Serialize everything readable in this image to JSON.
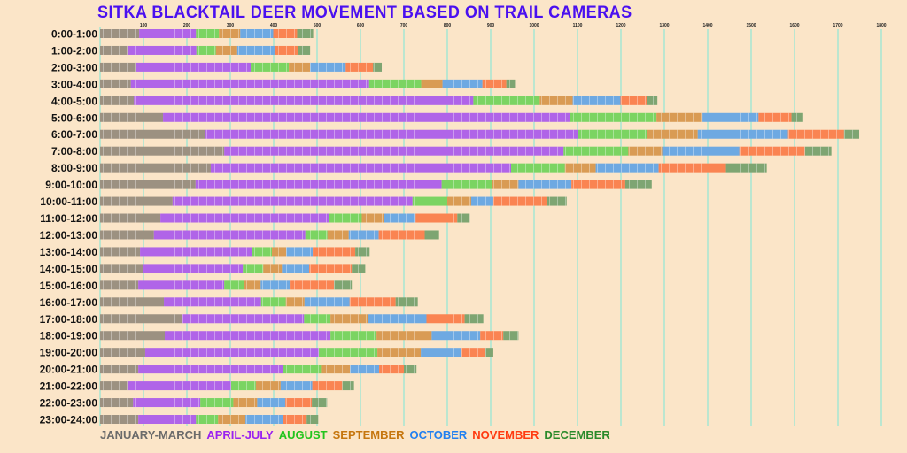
{
  "chart_data": {
    "type": "bar",
    "orientation": "horizontal",
    "stacked": true,
    "title": "SITKA BLACKTAIL DEER MOVEMENT BASED ON TRAIL CAMERAS",
    "xlim": [
      0,
      1800
    ],
    "xticks": [
      100,
      200,
      300,
      400,
      500,
      600,
      700,
      800,
      900,
      1000,
      1100,
      1200,
      1300,
      1400,
      1500,
      1600,
      1700,
      1800
    ],
    "grid": true,
    "legend_position": "bottom-left",
    "categories": [
      "0:00-1:00",
      "1:00-2:00",
      "2:00-3:00",
      "3:00-4:00",
      "4:00-5:00",
      "5:00-6:00",
      "6:00-7:00",
      "7:00-8:00",
      "8:00-9:00",
      "9:00-10:00",
      "10:00-11:00",
      "11:00-12:00",
      "12:00-13:00",
      "13:00-14:00",
      "14:00-15:00",
      "15:00-16:00",
      "16:00-17:00",
      "17:00-18:00",
      "18:00-19:00",
      "19:00-20:00",
      "20:00-21:00",
      "21:00-22:00",
      "22:00-23:00",
      "23:00-24:00"
    ],
    "series": [
      {
        "name": "JANUARY-MARCH",
        "color": "#9c9181",
        "legend_color": "#6b6b6b",
        "values": [
          90,
          63,
          82,
          71,
          78,
          145,
          243,
          286,
          255,
          220,
          167,
          139,
          124,
          92,
          100,
          88,
          147,
          188,
          149,
          104,
          88,
          63,
          76,
          88
        ]
      },
      {
        "name": "APRIL-JULY",
        "color": "#b064e8",
        "legend_color": "#9a22f0",
        "values": [
          131,
          159,
          265,
          549,
          782,
          937,
          859,
          782,
          692,
          567,
          553,
          388,
          349,
          257,
          229,
          198,
          224,
          282,
          382,
          400,
          333,
          239,
          155,
          133
        ]
      },
      {
        "name": "AUGUST",
        "color": "#7bd462",
        "legend_color": "#22c41c",
        "values": [
          53,
          45,
          88,
          120,
          153,
          200,
          159,
          149,
          124,
          116,
          80,
          76,
          51,
          47,
          47,
          45,
          57,
          61,
          106,
          135,
          88,
          57,
          76,
          51
        ]
      },
      {
        "name": "SEPTEMBER",
        "color": "#d99b54",
        "legend_color": "#c6760e",
        "values": [
          49,
          49,
          49,
          49,
          76,
          106,
          116,
          78,
          71,
          61,
          55,
          51,
          49,
          33,
          43,
          39,
          43,
          86,
          127,
          100,
          67,
          57,
          55,
          63
        ]
      },
      {
        "name": "OCTOBER",
        "color": "#6ea9e2",
        "legend_color": "#2280f0",
        "values": [
          76,
          86,
          82,
          92,
          110,
          129,
          208,
          178,
          145,
          122,
          51,
          73,
          69,
          61,
          63,
          67,
          104,
          135,
          112,
          94,
          67,
          73,
          65,
          86
        ]
      },
      {
        "name": "NOVEMBER",
        "color": "#fa8452",
        "legend_color": "#ff3a10",
        "values": [
          55,
          55,
          63,
          55,
          61,
          76,
          129,
          151,
          155,
          124,
          124,
          96,
          106,
          98,
          98,
          102,
          106,
          88,
          53,
          55,
          57,
          69,
          61,
          55
        ]
      },
      {
        "name": "DECEMBER",
        "color": "#7ea572",
        "legend_color": "#2a8a2a",
        "values": [
          37,
          27,
          20,
          20,
          24,
          27,
          35,
          61,
          94,
          61,
          45,
          29,
          33,
          33,
          31,
          41,
          51,
          43,
          35,
          18,
          29,
          27,
          35,
          27
        ]
      }
    ]
  }
}
